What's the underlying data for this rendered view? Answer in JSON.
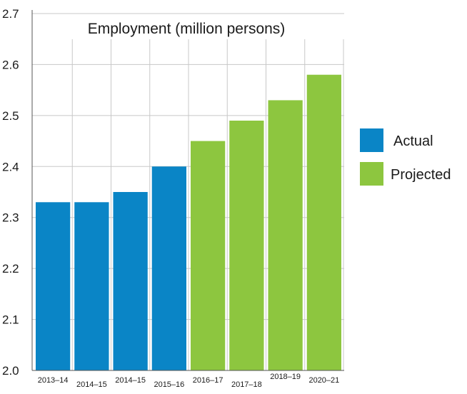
{
  "chart_data": {
    "type": "bar",
    "title": "Employment (million persons)",
    "xlabel": "",
    "ylabel": "",
    "ylim": [
      2.0,
      2.7
    ],
    "yticks": [
      "2.0",
      "2.1",
      "2.2",
      "2.3",
      "2.4",
      "2.5",
      "2.6",
      "2.7"
    ],
    "grid": true,
    "legend_position": "right",
    "categories": [
      "2013–14",
      "2014–15",
      "2014–15",
      "2015–16",
      "2016–17",
      "2017–18",
      "2018–19",
      "2020–21"
    ],
    "values": [
      2.33,
      2.33,
      2.35,
      2.4,
      2.45,
      2.49,
      2.53,
      2.58
    ],
    "bar_series": [
      "Actual",
      "Actual",
      "Actual",
      "Actual",
      "Projected",
      "Projected",
      "Projected",
      "Projected"
    ],
    "legend": [
      {
        "label": "Actual",
        "color": "#0a85c6"
      },
      {
        "label": "Projected",
        "color": "#8dc63f"
      }
    ]
  }
}
